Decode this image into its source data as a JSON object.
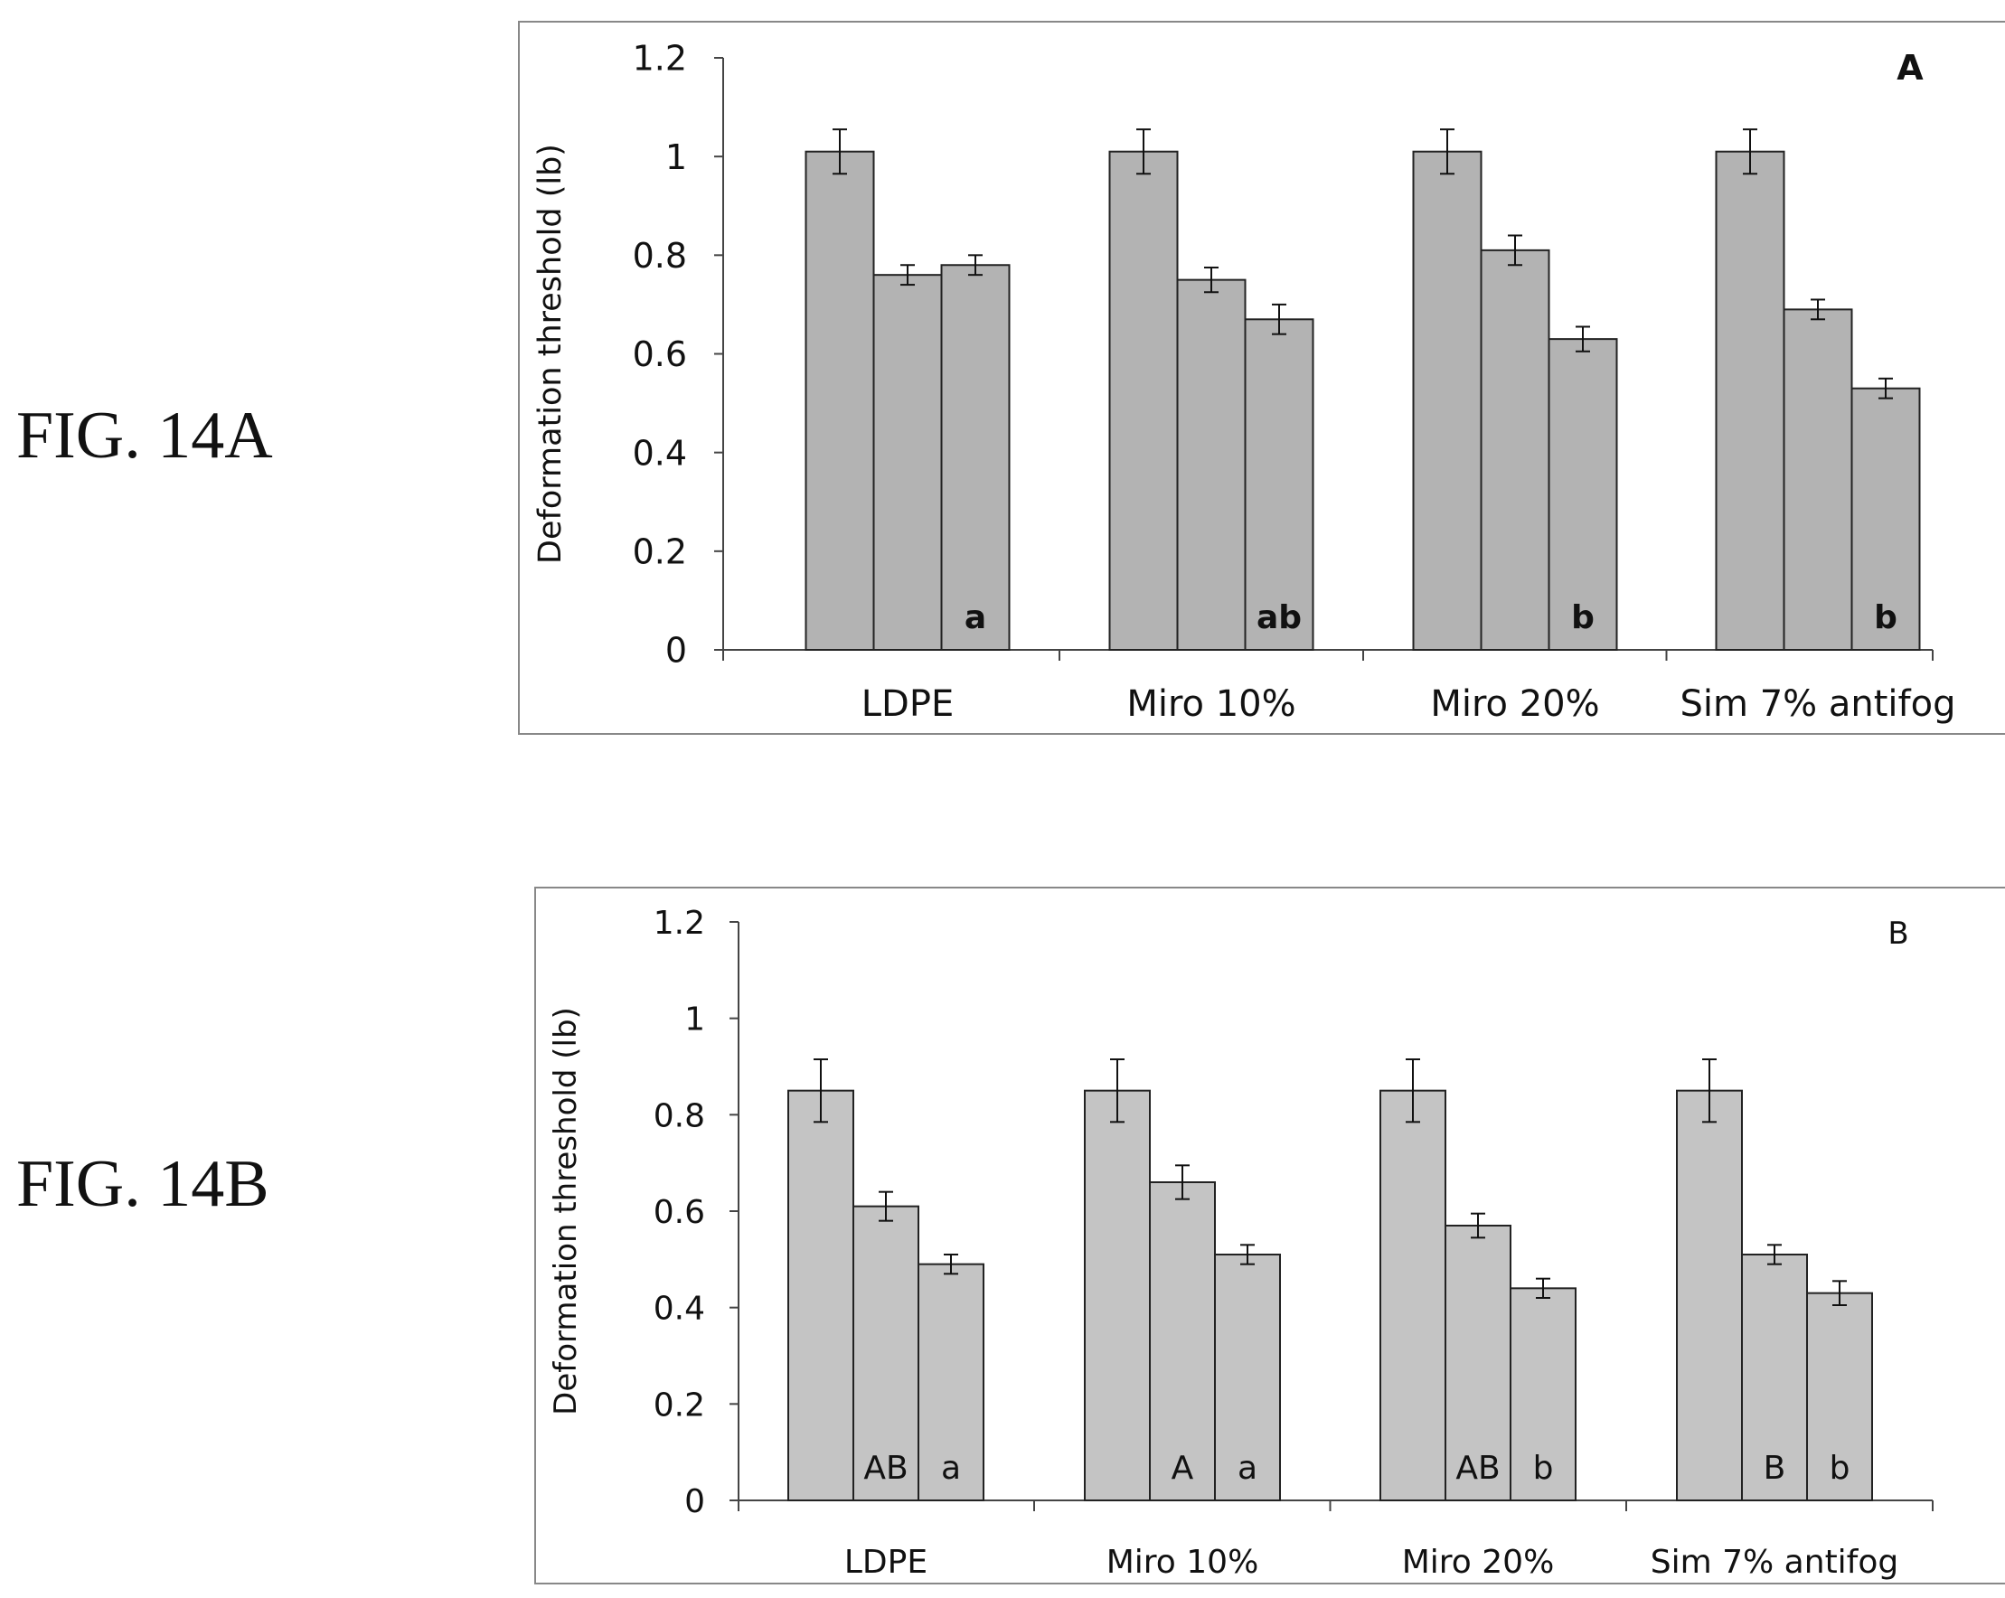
{
  "figures": [
    {
      "fig_label": "FIG. 14A",
      "panel_letter": "A",
      "ylabel": "Deformation threshold (lb)"
    },
    {
      "fig_label": "FIG. 14B",
      "panel_letter": "B",
      "ylabel": "Deformation threshold (lb)"
    }
  ],
  "chart_data": [
    {
      "type": "bar",
      "title": "A",
      "xlabel": "",
      "ylabel": "Deformation threshold (lb)",
      "ylim": [
        0,
        1.2
      ],
      "yticks": [
        "0",
        "0.2",
        "0.4",
        "0.6",
        "0.8",
        "1",
        "1.2"
      ],
      "categories": [
        "LDPE",
        "Miro 10%",
        "Miro 20%",
        "Sim 7% antifog"
      ],
      "series": [
        {
          "values": [
            1.01,
            1.01,
            1.01,
            1.01
          ],
          "errors": [
            0.045,
            0.045,
            0.045,
            0.045
          ],
          "letters": [
            "",
            "",
            "",
            ""
          ]
        },
        {
          "values": [
            0.76,
            0.75,
            0.81,
            0.69
          ],
          "errors": [
            0.02,
            0.025,
            0.03,
            0.02
          ],
          "letters": [
            "",
            "",
            "",
            ""
          ]
        },
        {
          "values": [
            0.78,
            0.67,
            0.63,
            0.53
          ],
          "errors": [
            0.02,
            0.03,
            0.025,
            0.02
          ],
          "letters": [
            "a",
            "ab",
            "b",
            "b"
          ]
        }
      ],
      "bar_color": "#b3b3b3",
      "grid": false,
      "legend": "none"
    },
    {
      "type": "bar",
      "title": "B",
      "xlabel": "",
      "ylabel": "Deformation threshold (lb)",
      "ylim": [
        0,
        1.2
      ],
      "yticks": [
        "0",
        "0.2",
        "0.4",
        "0.6",
        "0.8",
        "1",
        "1.2"
      ],
      "categories": [
        "LDPE",
        "Miro 10%",
        "Miro 20%",
        "Sim 7% antifog"
      ],
      "series": [
        {
          "values": [
            0.85,
            0.85,
            0.85,
            0.85
          ],
          "errors": [
            0.065,
            0.065,
            0.065,
            0.065
          ],
          "letters": [
            "",
            "",
            "",
            ""
          ]
        },
        {
          "values": [
            0.61,
            0.66,
            0.57,
            0.51
          ],
          "errors": [
            0.03,
            0.035,
            0.025,
            0.02
          ],
          "letters": [
            "AB",
            "A",
            "AB",
            "B"
          ]
        },
        {
          "values": [
            0.49,
            0.51,
            0.44,
            0.43
          ],
          "errors": [
            0.02,
            0.02,
            0.02,
            0.025
          ],
          "letters": [
            "a",
            "a",
            "b",
            "b"
          ]
        }
      ],
      "bar_color": "#c4c4c4",
      "grid": false,
      "legend": "none"
    }
  ]
}
